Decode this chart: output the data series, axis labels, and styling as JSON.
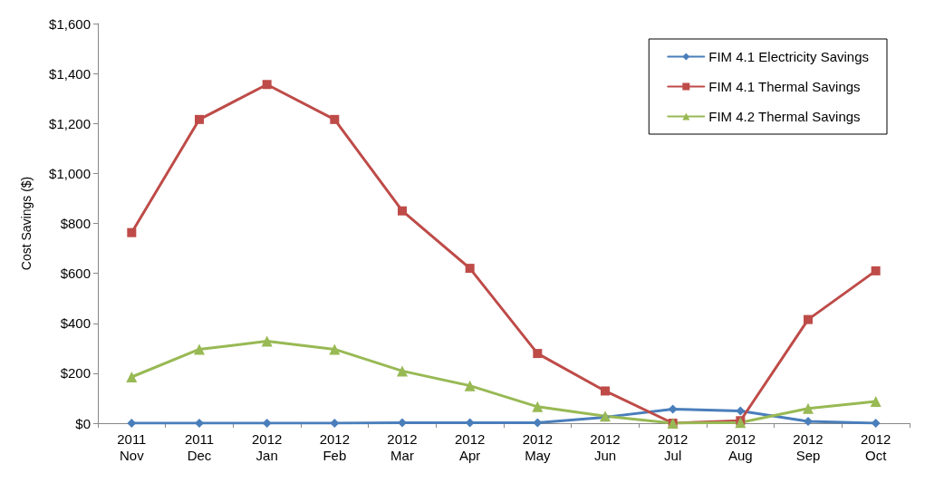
{
  "chart_data": {
    "type": "line",
    "ylabel": "Cost Savings ($)",
    "categories": [
      "2011\nNov",
      "2011\nDec",
      "2012\nJan",
      "2012\nFeb",
      "2012\nMar",
      "2012\nApr",
      "2012\nMay",
      "2012\nJun",
      "2012\nJul",
      "2012\nAug",
      "2012\nSep",
      "2012\nOct"
    ],
    "series": [
      {
        "name": "FIM 4.1 Electricity Savings",
        "color": "#4a7ebb",
        "marker": "diamond",
        "values": [
          0,
          0,
          0,
          0,
          2,
          2,
          2,
          24,
          56,
          49,
          7,
          0
        ]
      },
      {
        "name": "FIM 4.1 Thermal Savings",
        "color": "#be4b48",
        "marker": "square",
        "values": [
          763,
          1216,
          1356,
          1216,
          850,
          620,
          279,
          129,
          0,
          10,
          415,
          610
        ]
      },
      {
        "name": "FIM 4.2 Thermal Savings",
        "color": "#98b954",
        "marker": "triangle",
        "values": [
          185,
          296,
          328,
          296,
          209,
          150,
          66,
          28,
          0,
          3,
          59,
          87
        ]
      }
    ],
    "ylim": [
      0,
      1600
    ],
    "yticks": [
      {
        "value": 0,
        "label": "$0"
      },
      {
        "value": 200,
        "label": "$200"
      },
      {
        "value": 400,
        "label": "$400"
      },
      {
        "value": 600,
        "label": "$600"
      },
      {
        "value": 800,
        "label": "$800"
      },
      {
        "value": 1000,
        "label": "$1,000"
      },
      {
        "value": 1200,
        "label": "$1,200"
      },
      {
        "value": 1400,
        "label": "$1,400"
      },
      {
        "value": 1600,
        "label": "$1,600"
      }
    ],
    "grid": false,
    "legend": "top right",
    "line_style": "solid"
  }
}
